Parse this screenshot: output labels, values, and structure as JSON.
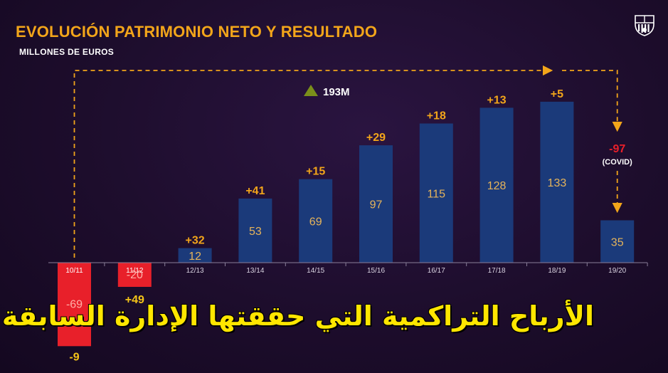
{
  "header": {
    "title": "EVOLUCIÓN PATRIMONIO NETO Y RESULTADO",
    "subtitle": "MILLONES DE EUROS"
  },
  "logo": {
    "icon": "fc-barcelona-crest-icon"
  },
  "overlay": {
    "caption": "الأرباح التراكمية التي حققتها الإدارة السابقة"
  },
  "colors": {
    "positive_bar": "#1b3a7a",
    "negative_bar": "#e8202a",
    "accent": "#f2a51a",
    "covid_label": "#e8202a"
  },
  "chart_data": {
    "type": "bar",
    "title": "EVOLUCIÓN PATRIMONIO NETO Y RESULTADO",
    "ylabel": "MILLONES DE EUROS",
    "categories": [
      "10/11",
      "11/12",
      "12/13",
      "13/14",
      "14/15",
      "15/16",
      "16/17",
      "17/18",
      "18/19",
      "19/20"
    ],
    "series": [
      {
        "values": [
          -69,
          -20,
          12,
          53,
          69,
          97,
          115,
          128,
          133,
          35
        ]
      }
    ],
    "results": [
      "-9",
      "+49",
      "+32",
      "+41",
      "+15",
      "+29",
      "+18",
      "+13",
      "+5",
      "-97"
    ],
    "covid_note": "(COVID)",
    "cumulative_label": "193M",
    "ylim": [
      -80,
      140
    ],
    "grid": false
  }
}
